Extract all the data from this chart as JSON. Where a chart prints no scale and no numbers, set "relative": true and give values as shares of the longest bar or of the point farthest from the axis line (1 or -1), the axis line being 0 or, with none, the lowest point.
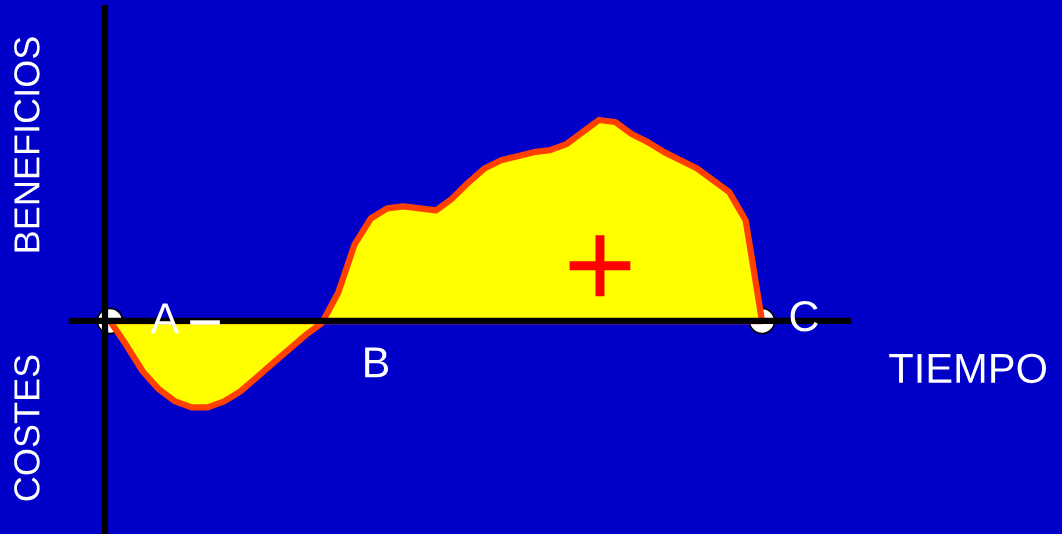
{
  "chart_data": {
    "type": "area",
    "relative": true,
    "xlabel": "TIEMPO",
    "categories": [
      null,
      null,
      null,
      null,
      null,
      null,
      null,
      null,
      null,
      null,
      null,
      null,
      null,
      null,
      null,
      null,
      null,
      null,
      null,
      null,
      null,
      null,
      null,
      null,
      null,
      null,
      null,
      null,
      null,
      null,
      null,
      null,
      null,
      null,
      null,
      null,
      null,
      null,
      null,
      null,
      null
    ],
    "series": [
      {
        "color": "#ffff00",
        "values": [
          0,
          -0.12,
          -0.25,
          -0.34,
          -0.4,
          -0.43,
          -0.43,
          -0.4,
          -0.35,
          -0.28,
          -0.21,
          -0.14,
          -0.07,
          -0.01,
          0.14,
          0.38,
          0.51,
          0.56,
          0.57,
          0.56,
          0.55,
          0.61,
          0.69,
          0.76,
          0.8,
          0.82,
          0.84,
          0.85,
          0.88,
          0.94,
          1.0,
          0.99,
          0.93,
          0.89,
          0.84,
          0.8,
          0.76,
          0.7,
          0.64,
          0.5,
          0
        ]
      }
    ],
    "annotations": [
      "A",
      "B",
      "C",
      "−",
      "+",
      "BENEFICIOS",
      "COSTES"
    ],
    "grid": false,
    "legend": false
  }
}
